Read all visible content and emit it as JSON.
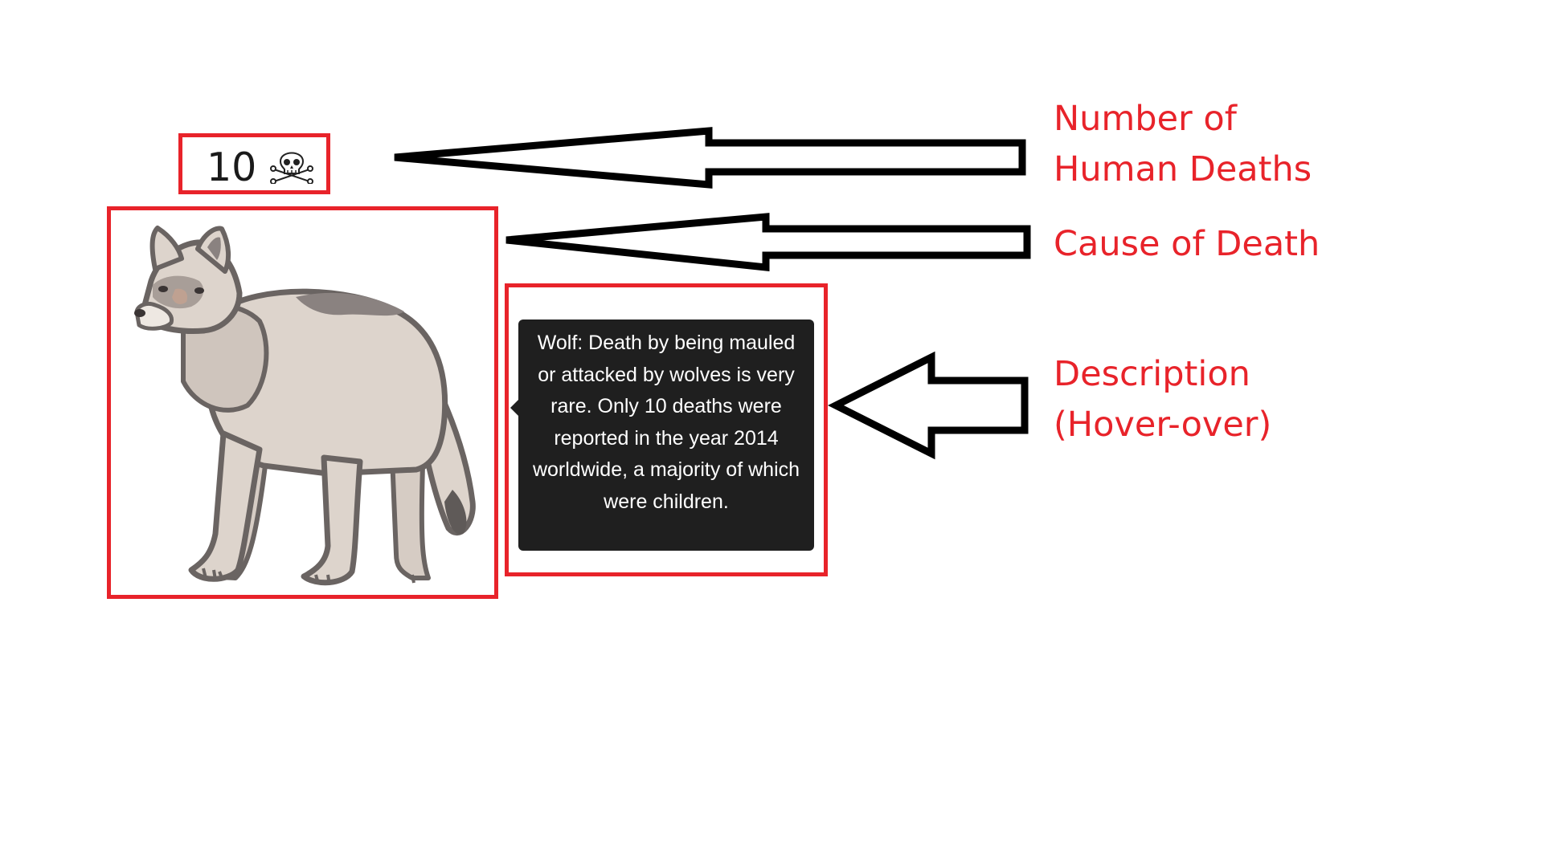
{
  "counter": {
    "value": "10",
    "icon": "skull-and-crossbones-icon"
  },
  "illustration": {
    "subject": "wolf"
  },
  "tooltip": {
    "text": "Wolf: Death by being mauled or attacked by wolves is very rare. Only 10 deaths were reported in the year 2014 worldwide, a majority of which were children."
  },
  "labels": {
    "deaths_line1": "Number of",
    "deaths_line2": "Human Deaths",
    "cause": "Cause of Death",
    "description_line1": "Description",
    "description_line2": "(Hover-over)"
  },
  "colors": {
    "annotation_red": "#e8232a",
    "tooltip_bg": "#1f1f1f",
    "wolf_fur": "#ddd4cc",
    "wolf_outline": "#6a6462"
  }
}
